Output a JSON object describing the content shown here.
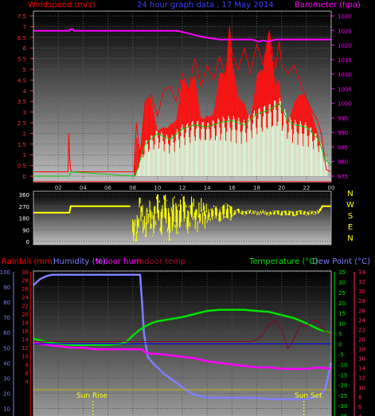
{
  "colors": {
    "background": "#000000",
    "windspeed": "#ff0000",
    "gust": "#ff2020",
    "windavg": "#00cc00",
    "barometer": "#ff00ff",
    "winddir": "#ffff00",
    "rain": "#ffd000",
    "humidity": "#7f7fff",
    "indoor_hum": "#ff00ff",
    "indoor_temp": "#8b0030",
    "temperature": "#00e000",
    "dewpoint": "#0000ff",
    "title": "#3f3fff",
    "axis_bar": "#ff00ff"
  },
  "chart_data": [
    {
      "type": "line",
      "id": "wind_baro",
      "title": "24 hour graph data , 17 May 2014",
      "left_label": "Windspeed (m/s)",
      "right_label": "Barometer (hpa)",
      "x_ticks": [
        "02",
        "04",
        "06",
        "08",
        "10",
        "12",
        "14",
        "16",
        "18",
        "20",
        "22",
        "00"
      ],
      "y_left_ticks": [
        "0",
        "0.5",
        "1",
        "1.5",
        "2",
        "2.5",
        "3",
        "3.5",
        "4",
        "4.5",
        "5",
        "5.5",
        "6",
        "6.5",
        "7",
        "7.5"
      ],
      "y_right_ticks": [
        "975",
        "980",
        "985",
        "990",
        "995",
        "1000",
        "1005",
        "1010",
        "1015",
        "1020",
        "1025",
        "1030"
      ],
      "ylim_left": [
        0,
        7.5
      ],
      "ylim_right": [
        975,
        1030
      ],
      "series": [
        {
          "name": "Barometer",
          "x": [
            0,
            2.9,
            2.95,
            3.2,
            3.25,
            11.6,
            12.6,
            13.6,
            15.0,
            17.6,
            18.2,
            18.5,
            18.9,
            19.5,
            24
          ],
          "y": [
            1024.9,
            1024.9,
            1025.4,
            1025.4,
            1024.9,
            1024.9,
            1023.9,
            1022.8,
            1021.9,
            1021.9,
            1021.2,
            1021.6,
            1021.2,
            1021.9,
            1021.9
          ]
        },
        {
          "name": "Windspeed",
          "x": [
            0,
            2.8,
            2.85,
            2.9,
            3.0,
            3.1,
            8.1,
            8.3,
            8.6,
            9.0,
            9.5,
            10.0,
            10.5,
            11.0,
            11.5,
            12.0,
            12.5,
            13.0,
            13.5,
            14.0,
            14.5,
            15.0,
            15.5,
            15.8,
            16.0,
            16.5,
            17.0,
            17.5,
            18.0,
            18.5,
            19.0,
            19.5,
            19.8,
            20.0,
            20.5,
            21.0,
            21.5,
            22.0,
            22.5,
            22.9,
            23.2,
            23.6,
            24
          ],
          "y": [
            0.2,
            0.2,
            2.0,
            1.0,
            0.3,
            0.2,
            0.2,
            2.5,
            1.0,
            3.5,
            3.8,
            2.8,
            4.0,
            4.2,
            3.5,
            4.8,
            4.0,
            5.5,
            4.2,
            5.2,
            4.5,
            5.6,
            4.6,
            7.0,
            5.8,
            5.0,
            6.0,
            4.8,
            6.2,
            5.2,
            6.8,
            5.0,
            6.3,
            5.2,
            4.8,
            5.2,
            4.4,
            3.6,
            3.0,
            2.6,
            2.0,
            0.3,
            0.2
          ]
        },
        {
          "name": "Wind average",
          "x": [
            0,
            2.9,
            3.0,
            8.2,
            9.0,
            10,
            11,
            12,
            13,
            14,
            15,
            16,
            17,
            18,
            19,
            19.8,
            20.5,
            21,
            22,
            23,
            23.5,
            24
          ],
          "y": [
            0.0,
            0.0,
            0.2,
            0.0,
            1.5,
            2.0,
            1.7,
            2.2,
            2.4,
            2.3,
            2.5,
            2.6,
            2.4,
            2.9,
            3.1,
            3.4,
            2.6,
            2.4,
            2.3,
            1.7,
            0.8,
            0.5
          ]
        }
      ]
    },
    {
      "type": "line",
      "id": "wind_dir",
      "y_ticks": [
        "360",
        "270",
        "180",
        "90",
        "0"
      ],
      "compass": [
        "N",
        "W",
        "S",
        "E",
        "N"
      ],
      "ylim": [
        0,
        360
      ],
      "series": [
        {
          "name": "Wind direction",
          "x": [
            0,
            2.9,
            3.0,
            7.8,
            8.0,
            8.3,
            8.6,
            9.0,
            9.3,
            9.6,
            10.0,
            10.3,
            10.6,
            11.0,
            11.3,
            11.6,
            12.0,
            12.4,
            12.8,
            13.2,
            13.6,
            14.0,
            14.5,
            15.0,
            15.5,
            16.0,
            16.5,
            17.0,
            17.5,
            18.0,
            18.5,
            19.0,
            19.5,
            20.0,
            20.5,
            21.0,
            21.5,
            22.0,
            22.5,
            23.0,
            23.3,
            24
          ],
          "y": [
            220,
            220,
            270,
            270,
            120,
            40,
            300,
            60,
            280,
            90,
            310,
            120,
            300,
            80,
            260,
            140,
            280,
            160,
            250,
            170,
            240,
            180,
            230,
            200,
            240,
            210,
            235,
            215,
            230,
            215,
            225,
            210,
            225,
            215,
            220,
            210,
            225,
            215,
            220,
            225,
            270,
            270
          ]
        }
      ]
    },
    {
      "type": "line",
      "id": "temp_hum",
      "labels": {
        "rain": "Rainfall (mm)",
        "humidity": "Humidity (%)",
        "indoor_hum": "Indoor hum",
        "indoor_temp": "Indoor temp",
        "temperature": "Temperature (°C)",
        "dewpoint": "Dew Point (°C)"
      },
      "y_hum_ticks": [
        "100",
        "90",
        "80",
        "70",
        "60",
        "50",
        "40",
        "30",
        "20",
        "10"
      ],
      "y_rain_ticks": [
        "30",
        "28",
        "26",
        "24",
        "22",
        "20",
        "18",
        "16",
        "14",
        "12",
        "10",
        "8",
        "6",
        "4"
      ],
      "y_temp_ticks": [
        "35",
        "30",
        "25",
        "20",
        "15",
        "10",
        "5",
        "0",
        "-5",
        "-10",
        "-15",
        "-20",
        "-25",
        "-30",
        "-35"
      ],
      "y_indoor_ticks": [
        "34",
        "32",
        "30",
        "28",
        "26",
        "24",
        "22",
        "20",
        "18",
        "16",
        "14",
        "12",
        "10",
        "8",
        "6",
        "4"
      ],
      "ylim_humidity": [
        5,
        100
      ],
      "ylim_temp": [
        -35,
        35
      ],
      "ylim_indoor_temp": [
        4,
        34
      ],
      "sun_rise": "Sun Rise",
      "sun_set": "Sun Set",
      "series": [
        {
          "name": "Humidity",
          "x": [
            0,
            0.5,
            1,
            1.5,
            2,
            3,
            4,
            5,
            6,
            7,
            8,
            8.6,
            8.75,
            8.9,
            9.2,
            9.6,
            10,
            10.5,
            11,
            11.5,
            12,
            12.5,
            13,
            14,
            15,
            16,
            17,
            18,
            19,
            20,
            21,
            22,
            22.5,
            23,
            23.5,
            24
          ],
          "y": [
            91,
            95,
            97,
            98,
            98,
            98,
            98,
            98,
            98,
            98,
            98,
            98,
            80,
            60,
            44,
            40,
            37,
            33,
            30,
            27,
            24,
            21,
            19,
            17,
            17,
            17,
            17,
            17,
            16,
            16,
            16,
            16,
            17,
            18,
            22,
            40
          ]
        },
        {
          "name": "Indoor hum",
          "x": [
            0,
            1,
            2,
            3,
            4,
            5,
            6,
            7,
            8,
            8.7,
            9.0,
            9.5,
            10,
            11,
            12,
            13,
            14,
            15,
            16,
            17,
            18,
            19,
            20,
            21,
            22,
            23,
            24
          ],
          "y": [
            53,
            52,
            51,
            50,
            50,
            49,
            49,
            49,
            49,
            49,
            47,
            46,
            46,
            45,
            44,
            43,
            41,
            40,
            39,
            38,
            37,
            37,
            36,
            36,
            36,
            37,
            36
          ]
        },
        {
          "name": "Temperature",
          "x": [
            0,
            1,
            2,
            3,
            4,
            5,
            6,
            7,
            7.5,
            8,
            8.5,
            9,
            9.5,
            10,
            11,
            12,
            13,
            14,
            15,
            16,
            17,
            18,
            19,
            20,
            21,
            22,
            23,
            24
          ],
          "y": [
            2.5,
            1,
            0,
            -0.5,
            -0.5,
            -0.5,
            -0.5,
            0,
            1,
            4,
            6.5,
            8.5,
            10,
            11,
            12,
            13,
            14.5,
            16,
            16.5,
            16.5,
            16.5,
            16,
            15.5,
            14,
            12.5,
            10,
            7,
            5
          ]
        },
        {
          "name": "Dew Point",
          "x": [
            0,
            24
          ],
          "y": [
            0,
            0
          ]
        },
        {
          "name": "Indoor temp",
          "x": [
            0,
            2,
            4,
            6,
            8,
            10,
            12,
            13.5,
            15,
            16.5,
            17.5,
            18,
            18.5,
            19,
            19.5,
            20,
            20.5,
            21,
            21.5,
            22,
            22.5,
            23,
            23.5,
            24
          ],
          "y": [
            19.5,
            19.5,
            19.5,
            19.5,
            19.5,
            19.5,
            19.5,
            19.5,
            19.5,
            19.5,
            19.5,
            19.8,
            21,
            23,
            24,
            22,
            18,
            20,
            23,
            22.5,
            24,
            23.5,
            21.5,
            21
          ]
        },
        {
          "name": "Rainfall",
          "x": [
            0,
            24
          ],
          "y": [
            2,
            2
          ]
        }
      ]
    }
  ]
}
